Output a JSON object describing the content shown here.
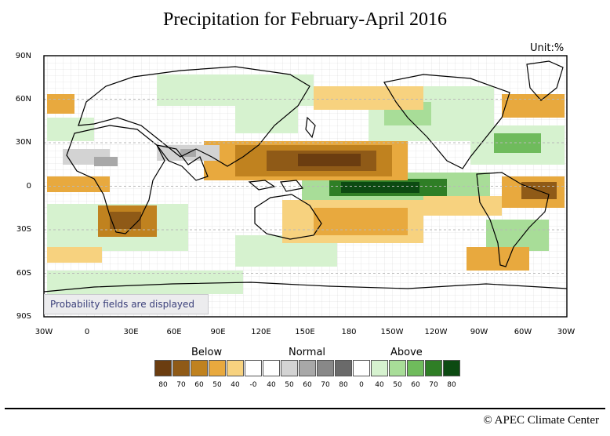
{
  "title": "Precipitation for February-April 2016",
  "unit_label": "Unit:%",
  "lat_labels": [
    "90N",
    "60N",
    "30N",
    "0",
    "30S",
    "60S",
    "90S"
  ],
  "lon_labels": [
    "30W",
    "0",
    "30E",
    "60E",
    "90E",
    "120E",
    "150E",
    "180",
    "150W",
    "120W",
    "90W",
    "60W",
    "30W"
  ],
  "probability_note": "Probability fields are displayed",
  "legend": {
    "below_label": "Below",
    "normal_label": "Normal",
    "above_label": "Above",
    "below": [
      {
        "label": "80",
        "color": "#6b3d10"
      },
      {
        "label": "70",
        "color": "#8f5a17"
      },
      {
        "label": "60",
        "color": "#c0821f"
      },
      {
        "label": "50",
        "color": "#e8a93e"
      },
      {
        "label": "40",
        "color": "#f7d27f"
      }
    ],
    "normal": [
      {
        "label": "-0",
        "color": "#ffffff"
      },
      {
        "label": "40",
        "color": "#ffffff"
      },
      {
        "label": "50",
        "color": "#d3d3d3"
      },
      {
        "label": "60",
        "color": "#a8a8a8"
      },
      {
        "label": "70",
        "color": "#888888"
      },
      {
        "label": "80",
        "color": "#6a6a6a"
      }
    ],
    "above": [
      {
        "label": "0",
        "color": "#ffffff"
      },
      {
        "label": "40",
        "color": "#d6f2cf"
      },
      {
        "label": "50",
        "color": "#a8dd98"
      },
      {
        "label": "60",
        "color": "#6fbb5c"
      },
      {
        "label": "70",
        "color": "#2f7e26"
      },
      {
        "label": "80",
        "color": "#0c4a12"
      }
    ]
  },
  "credit": "© APEC Climate Center"
}
